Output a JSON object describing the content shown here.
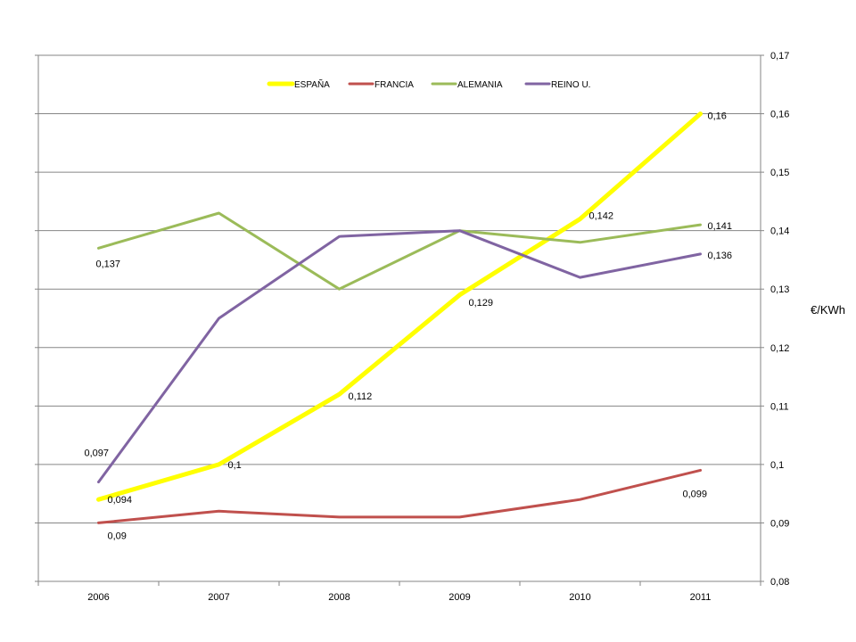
{
  "chart_data": {
    "type": "line",
    "title": "",
    "xlabel": "",
    "ylabel": "€/KWh",
    "x": [
      "2006",
      "2007",
      "2008",
      "2009",
      "2010",
      "2011"
    ],
    "ylim": [
      0.08,
      0.17
    ],
    "y_ticks": [
      "0,08",
      "0,09",
      "0,1",
      "0,11",
      "0,12",
      "0,13",
      "0,14",
      "0,15",
      "0,16",
      "0,17"
    ],
    "grid": true,
    "legend_position": "top",
    "y_axis_side": "right",
    "series": [
      {
        "name": "ESPAÑA",
        "color": "#ffff00",
        "values": [
          0.094,
          0.1,
          0.112,
          0.129,
          0.142,
          0.16
        ],
        "labels": [
          "0,094",
          "0,1",
          "0,112",
          "0,129",
          "0,142",
          "0,16"
        ]
      },
      {
        "name": "FRANCIA",
        "color": "#c0504d",
        "values": [
          0.09,
          0.092,
          0.091,
          0.091,
          0.094,
          0.099
        ],
        "labels": [
          "0,09",
          "",
          "",
          "",
          "",
          "0,099"
        ]
      },
      {
        "name": "ALEMANIA",
        "color": "#9bbb59",
        "values": [
          0.137,
          0.143,
          0.13,
          0.14,
          0.138,
          0.141
        ],
        "labels": [
          "0,137",
          "",
          "",
          "",
          "",
          "0,141"
        ]
      },
      {
        "name": "REINO U.",
        "color": "#8064a2",
        "values": [
          0.097,
          0.125,
          0.139,
          0.14,
          0.132,
          0.136
        ],
        "labels": [
          "0,097",
          "",
          "",
          "",
          "",
          "0,136"
        ]
      }
    ]
  }
}
